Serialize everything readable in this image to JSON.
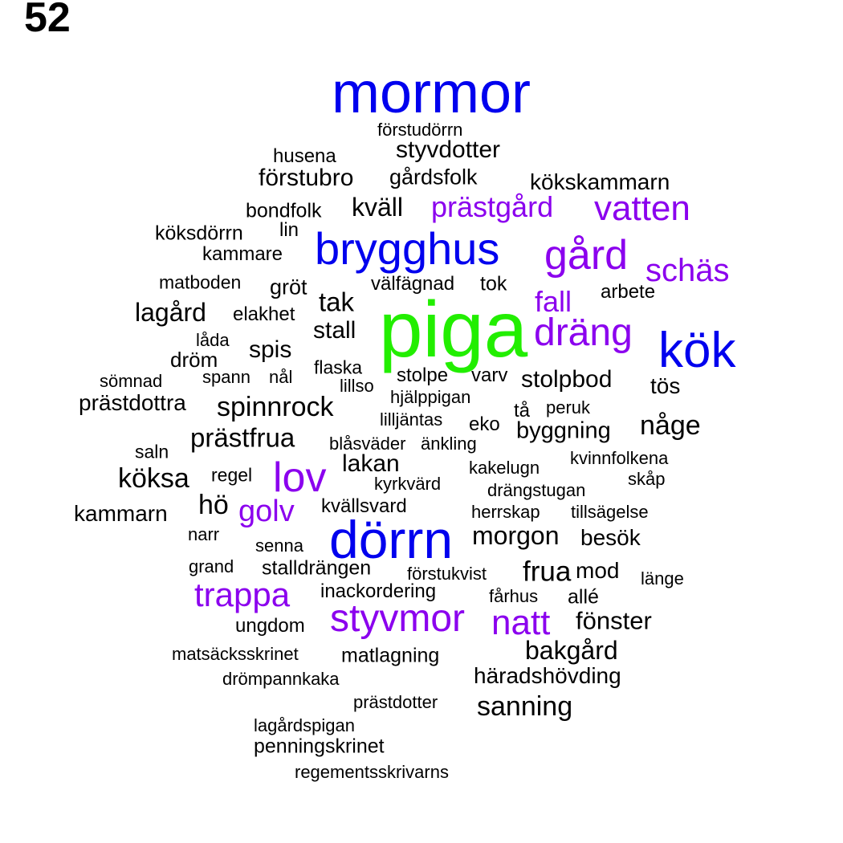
{
  "page_number": "52",
  "colors": {
    "black": "#000000",
    "blue": "#0000ee",
    "purple": "#8b00ee",
    "green": "#22ee00"
  },
  "words": [
    {
      "text": "mormor",
      "color": "blue"
    },
    {
      "text": "förstudörrn",
      "color": "black"
    },
    {
      "text": "styvdotter",
      "color": "black"
    },
    {
      "text": "husena",
      "color": "black"
    },
    {
      "text": "förstubro",
      "color": "black"
    },
    {
      "text": "gårdsfolk",
      "color": "black"
    },
    {
      "text": "kökskammarn",
      "color": "black"
    },
    {
      "text": "kväll",
      "color": "black"
    },
    {
      "text": "prästgård",
      "color": "purple"
    },
    {
      "text": "vatten",
      "color": "purple"
    },
    {
      "text": "bondfolk",
      "color": "black"
    },
    {
      "text": "lin",
      "color": "black"
    },
    {
      "text": "köksdörrn",
      "color": "black"
    },
    {
      "text": "brygghus",
      "color": "blue"
    },
    {
      "text": "gård",
      "color": "purple"
    },
    {
      "text": "kammare",
      "color": "black"
    },
    {
      "text": "schäs",
      "color": "purple"
    },
    {
      "text": "matboden",
      "color": "black"
    },
    {
      "text": "gröt",
      "color": "black"
    },
    {
      "text": "välfägnad",
      "color": "black"
    },
    {
      "text": "tok",
      "color": "black"
    },
    {
      "text": "arbete",
      "color": "black"
    },
    {
      "text": "fall",
      "color": "purple"
    },
    {
      "text": "tak",
      "color": "black"
    },
    {
      "text": "lagård",
      "color": "black"
    },
    {
      "text": "elakhet",
      "color": "black"
    },
    {
      "text": "piga",
      "color": "green"
    },
    {
      "text": "dräng",
      "color": "purple"
    },
    {
      "text": "kök",
      "color": "blue"
    },
    {
      "text": "stall",
      "color": "black"
    },
    {
      "text": "låda",
      "color": "black"
    },
    {
      "text": "spis",
      "color": "black"
    },
    {
      "text": "dröm",
      "color": "black"
    },
    {
      "text": "flaska",
      "color": "black"
    },
    {
      "text": "sömnad",
      "color": "black"
    },
    {
      "text": "spann",
      "color": "black"
    },
    {
      "text": "nål",
      "color": "black"
    },
    {
      "text": "lillso",
      "color": "black"
    },
    {
      "text": "stolpe",
      "color": "black"
    },
    {
      "text": "varv",
      "color": "black"
    },
    {
      "text": "stolpbod",
      "color": "black"
    },
    {
      "text": "tös",
      "color": "black"
    },
    {
      "text": "hjälppigan",
      "color": "black"
    },
    {
      "text": "prästdottra",
      "color": "black"
    },
    {
      "text": "spinnrock",
      "color": "black"
    },
    {
      "text": "tå",
      "color": "black"
    },
    {
      "text": "peruk",
      "color": "black"
    },
    {
      "text": "lilljäntas",
      "color": "black"
    },
    {
      "text": "eko",
      "color": "black"
    },
    {
      "text": "någe",
      "color": "black"
    },
    {
      "text": "byggning",
      "color": "black"
    },
    {
      "text": "prästfrua",
      "color": "black"
    },
    {
      "text": "blåsväder",
      "color": "black"
    },
    {
      "text": "änkling",
      "color": "black"
    },
    {
      "text": "saln",
      "color": "black"
    },
    {
      "text": "kvinnfolkena",
      "color": "black"
    },
    {
      "text": "lakan",
      "color": "black"
    },
    {
      "text": "kakelugn",
      "color": "black"
    },
    {
      "text": "köksa",
      "color": "black"
    },
    {
      "text": "regel",
      "color": "black"
    },
    {
      "text": "lov",
      "color": "purple"
    },
    {
      "text": "skåp",
      "color": "black"
    },
    {
      "text": "kyrkvärd",
      "color": "black"
    },
    {
      "text": "drängstugan",
      "color": "black"
    },
    {
      "text": "hö",
      "color": "black"
    },
    {
      "text": "golv",
      "color": "purple"
    },
    {
      "text": "kvällsvard",
      "color": "black"
    },
    {
      "text": "kammarn",
      "color": "black"
    },
    {
      "text": "herrskap",
      "color": "black"
    },
    {
      "text": "tillsägelse",
      "color": "black"
    },
    {
      "text": "narr",
      "color": "black"
    },
    {
      "text": "dörrn",
      "color": "blue"
    },
    {
      "text": "morgon",
      "color": "black"
    },
    {
      "text": "besök",
      "color": "black"
    },
    {
      "text": "senna",
      "color": "black"
    },
    {
      "text": "grand",
      "color": "black"
    },
    {
      "text": "stalldrängen",
      "color": "black"
    },
    {
      "text": "förstukvist",
      "color": "black"
    },
    {
      "text": "frua",
      "color": "black"
    },
    {
      "text": "mod",
      "color": "black"
    },
    {
      "text": "länge",
      "color": "black"
    },
    {
      "text": "trappa",
      "color": "purple"
    },
    {
      "text": "inackordering",
      "color": "black"
    },
    {
      "text": "fårhus",
      "color": "black"
    },
    {
      "text": "allé",
      "color": "black"
    },
    {
      "text": "styvmor",
      "color": "purple"
    },
    {
      "text": "natt",
      "color": "purple"
    },
    {
      "text": "fönster",
      "color": "black"
    },
    {
      "text": "ungdom",
      "color": "black"
    },
    {
      "text": "bakgård",
      "color": "black"
    },
    {
      "text": "matsäcksskrinet",
      "color": "black"
    },
    {
      "text": "matlagning",
      "color": "black"
    },
    {
      "text": "häradshövding",
      "color": "black"
    },
    {
      "text": "drömpannkaka",
      "color": "black"
    },
    {
      "text": "prästdotter",
      "color": "black"
    },
    {
      "text": "sanning",
      "color": "black"
    },
    {
      "text": "lagårdspigan",
      "color": "black"
    },
    {
      "text": "penningskrinet",
      "color": "black"
    },
    {
      "text": "regementsskrivarns",
      "color": "black"
    }
  ]
}
